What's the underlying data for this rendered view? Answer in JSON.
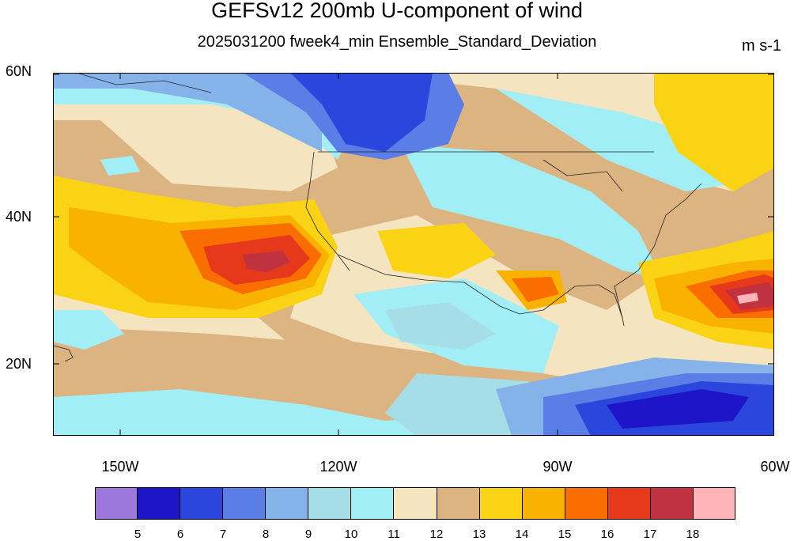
{
  "header": {
    "title": "GEFSv12 200mb U-component of wind",
    "subtitle": "2025031200 fweek4_min Ensemble_Standard_Deviation",
    "units": "m s-1"
  },
  "axes": {
    "lat_labels": [
      "60N",
      "40N",
      "20N"
    ],
    "lon_labels": [
      "150W",
      "120W",
      "90W",
      "60W"
    ]
  },
  "colorbar": {
    "labels": [
      "5",
      "6",
      "7",
      "8",
      "9",
      "10",
      "11",
      "12",
      "13",
      "14",
      "15",
      "16",
      "17",
      "18"
    ],
    "colors": [
      "#9a78dc",
      "#1e14c8",
      "#2a46dc",
      "#5a7ee6",
      "#86b2ea",
      "#a6dee8",
      "#a2eef6",
      "#f4e4c0",
      "#dcb482",
      "#fad414",
      "#fab200",
      "#fa6e00",
      "#e6381a",
      "#c03240",
      "#feb4b8"
    ]
  }
}
